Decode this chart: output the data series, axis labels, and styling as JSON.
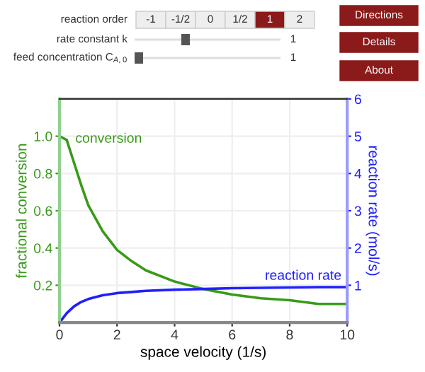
{
  "chart_data": {
    "type": "line",
    "xlabel": "space velocity (1/s)",
    "ylabel": "fractional conversion",
    "y2label": "reaction rate (mol/s)",
    "xlim": [
      0,
      10
    ],
    "xticks": [
      0,
      2,
      4,
      6,
      8,
      10
    ],
    "ylim": [
      0,
      1.2
    ],
    "yticks": [
      0.2,
      0.4,
      0.6,
      0.8,
      {
        "value": 1,
        "label": "1.0"
      }
    ],
    "y2lim": [
      0,
      6
    ],
    "y2ticks": [
      1,
      2,
      3,
      4,
      5,
      6
    ],
    "grid": true,
    "series": [
      {
        "name": "conversion",
        "color": "#3a9a1a",
        "x": [
          0,
          0.25,
          0.5,
          0.75,
          1,
          1.5,
          2,
          2.5,
          3,
          4,
          5,
          6,
          7,
          8,
          9,
          10
        ],
        "values": [
          1.0,
          0.98,
          0.86,
          0.74,
          0.63,
          0.49,
          0.39,
          0.33,
          0.28,
          0.22,
          0.18,
          0.15,
          0.13,
          0.12,
          0.1,
          0.1
        ]
      },
      {
        "name": "reaction rate",
        "color": "#1f1fff",
        "axis": "y2",
        "x": [
          0,
          0.1,
          0.25,
          0.5,
          0.75,
          1,
          1.5,
          2,
          2.5,
          3,
          4,
          5,
          6,
          7,
          8,
          9,
          10
        ],
        "values": [
          0,
          0.1,
          0.25,
          0.43,
          0.55,
          0.63,
          0.73,
          0.79,
          0.82,
          0.85,
          0.88,
          0.9,
          0.92,
          0.93,
          0.94,
          0.95,
          0.95
        ]
      }
    ],
    "annotations": [
      "reaction order",
      "-1",
      "-1/2",
      "0",
      "1/2",
      "1",
      "2",
      "rate constant k",
      "1",
      "feed concentration C$_{A,0}$",
      "1",
      "Directions",
      "Details",
      "About"
    ]
  }
}
